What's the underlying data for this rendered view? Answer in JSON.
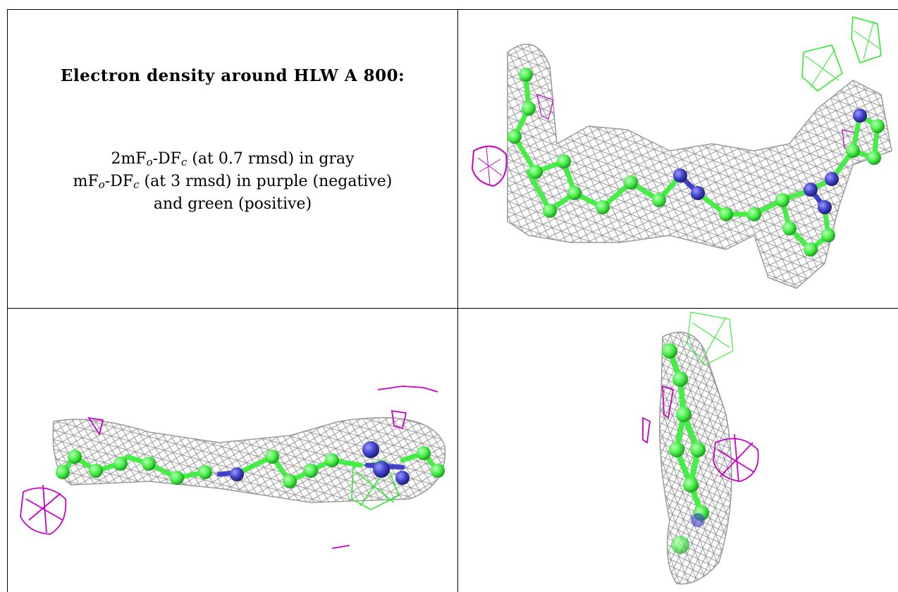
{
  "title": "Electron density around HLW A 800:",
  "legend": {
    "line1_pre": "2mF",
    "line1_sub1": "o",
    "line1_mid": "-DF",
    "line1_sub2": "c",
    "line1_post": " (at 0.7 rmsd) in gray",
    "line2_pre": "mF",
    "line2_sub1": "o",
    "line2_mid": "-DF",
    "line2_sub2": "c",
    "line2_post": " (at 3 rmsd) in purple (negative)",
    "line3": "and green (positive)"
  },
  "colors": {
    "mesh_gray": "#9a9a9a",
    "negative_purple": "#c800c8",
    "positive_green": "#22ee22",
    "carbon_green": "#44ee44",
    "nitrogen_blue": "#4040c8"
  }
}
